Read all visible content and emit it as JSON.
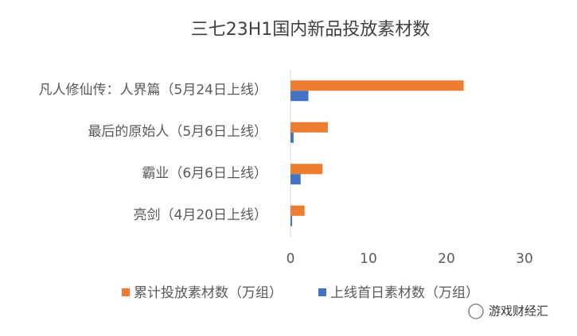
{
  "chart_data": {
    "type": "bar",
    "orientation": "horizontal",
    "title": "三七23H1国内新品投放素材数",
    "categories": [
      "凡人修仙传：人界篇（5月24日上线）",
      "最后的原始人（5月6日上线）",
      "霸业（6月6日上线）",
      "亮剑（4月20日上线）"
    ],
    "series": [
      {
        "name": "累计投放素材数（万组）",
        "color": "#ed7d31",
        "values": [
          22.2,
          4.8,
          4.1,
          1.8
        ]
      },
      {
        "name": "上线首日素材数（万组）",
        "color": "#4472c4",
        "values": [
          2.3,
          0.4,
          1.3,
          0.2
        ]
      }
    ],
    "xlim": [
      0,
      30
    ],
    "xticks": [
      0,
      10,
      20,
      30
    ],
    "grid": false,
    "legend": "bottom"
  },
  "watermark": "游戏财经汇"
}
